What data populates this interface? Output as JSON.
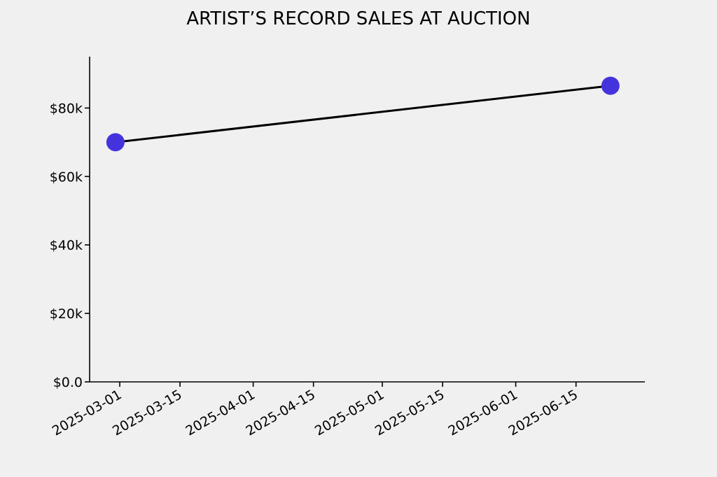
{
  "chart_data": {
    "type": "line",
    "title": "ARTIST’S RECORD SALES AT AUCTION",
    "xlabel": "",
    "ylabel": "",
    "x_type": "date",
    "x": [
      "2025-02-28",
      "2025-06-23"
    ],
    "series": [
      {
        "values": [
          70000,
          86500
        ]
      }
    ],
    "xlim": [
      "2025-02-22",
      "2025-07-01"
    ],
    "ylim": [
      0,
      95000
    ],
    "x_ticks": [
      "2025-03-01",
      "2025-03-15",
      "2025-04-01",
      "2025-04-15",
      "2025-05-01",
      "2025-05-15",
      "2025-06-01",
      "2025-06-15"
    ],
    "y_ticks": [
      0,
      20000,
      40000,
      60000,
      80000
    ],
    "y_tick_labels": [
      "$0.0",
      "$20k",
      "$40k",
      "$60k",
      "$80k"
    ],
    "grid": false,
    "spines": "left-bottom",
    "colors": {
      "line": "#000000",
      "marker": "#4433dd",
      "background": "#f0f0f0"
    }
  }
}
